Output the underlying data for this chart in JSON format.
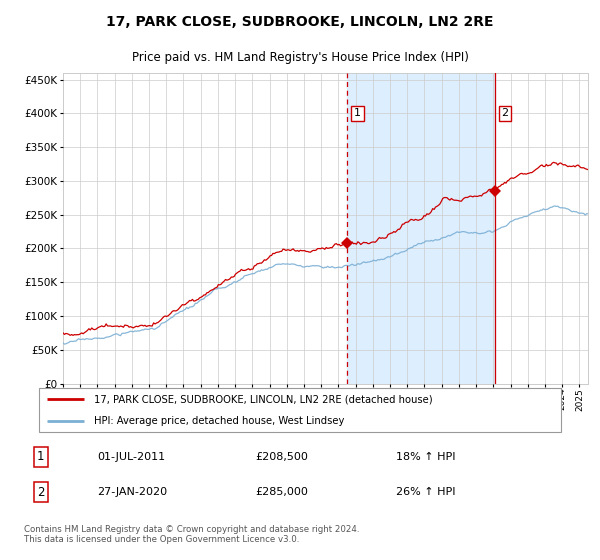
{
  "title": "17, PARK CLOSE, SUDBROOKE, LINCOLN, LN2 2RE",
  "subtitle": "Price paid vs. HM Land Registry's House Price Index (HPI)",
  "legend_line1": "17, PARK CLOSE, SUDBROOKE, LINCOLN, LN2 2RE (detached house)",
  "legend_line2": "HPI: Average price, detached house, West Lindsey",
  "annotation1_date": "01-JUL-2011",
  "annotation1_price": "£208,500",
  "annotation1_hpi": "18% ↑ HPI",
  "annotation1_year": 2011.5,
  "annotation1_value": 208500,
  "annotation2_date": "27-JAN-2020",
  "annotation2_price": "£285,000",
  "annotation2_hpi": "26% ↑ HPI",
  "annotation2_year": 2020.08,
  "annotation2_value": 285000,
  "footer": "Contains HM Land Registry data © Crown copyright and database right 2024.\nThis data is licensed under the Open Government Licence v3.0.",
  "red_color": "#cc0000",
  "blue_color": "#7bafd4",
  "shaded_color": "#ddeeff",
  "grid_color": "#cccccc",
  "ylim": [
    0,
    460000
  ],
  "xlim_start": 1995.0,
  "xlim_end": 2025.5,
  "title_fontsize": 10,
  "subtitle_fontsize": 8.5
}
